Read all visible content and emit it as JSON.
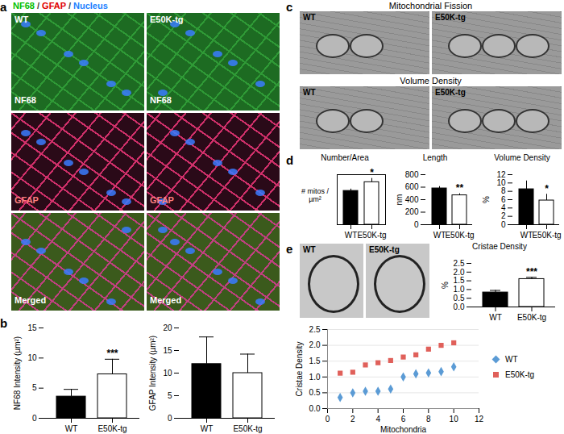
{
  "figure": {
    "letters": [
      "a",
      "b",
      "c",
      "d",
      "e"
    ],
    "panel_a": {
      "header": [
        {
          "text": "NF68",
          "color": "#00c000"
        },
        {
          "text": "GFAP",
          "color": "#e00000"
        },
        {
          "text": "Nucleus",
          "color": "#2080ff"
        }
      ],
      "separator": " / ",
      "columns": [
        "WT",
        "E50K-tg"
      ],
      "rows": [
        "NF68",
        "GFAP",
        "Merged"
      ]
    },
    "panel_c": {
      "sections": [
        {
          "title": "Mitochondrial Fission",
          "columns": [
            "WT",
            "E50K-tg"
          ]
        },
        {
          "title": "Volume Density",
          "columns": [
            "WT",
            "E50K-tg"
          ]
        }
      ]
    },
    "panel_e": {
      "columns": [
        "WT",
        "E50K-tg"
      ]
    }
  },
  "chart_data": [
    {
      "type": "bar",
      "ylabel": "NF68 Intensity (µm²)",
      "categories": [
        "WT",
        "E50K-tg"
      ],
      "values": [
        3.6,
        7.3
      ],
      "errors": [
        1.2,
        2.5
      ],
      "colors": [
        "#000000",
        "#ffffff"
      ],
      "ylim": [
        0,
        15
      ],
      "yticks": [
        0,
        5,
        10,
        15
      ],
      "annotations": [
        {
          "category": "E50K-tg",
          "text": "***"
        }
      ]
    },
    {
      "type": "bar",
      "ylabel": "GFAP Intensity (µm²)",
      "categories": [
        "WT",
        "E50K-tg"
      ],
      "values": [
        12,
        10
      ],
      "errors": [
        6,
        4.2
      ],
      "colors": [
        "#000000",
        "#ffffff"
      ],
      "ylim": [
        0,
        20
      ],
      "yticks": [
        0,
        5,
        10,
        15,
        20
      ]
    },
    {
      "type": "bar",
      "title": "Number/Area",
      "ylabel": "# mitos / µm²",
      "categories": [
        "WT",
        "E50K-tg"
      ],
      "values": [
        0.54,
        0.68
      ],
      "errors": [
        0.03,
        0.06
      ],
      "colors": [
        "#000000",
        "#ffffff"
      ],
      "ylim": [
        0,
        0.8
      ],
      "yticks": [],
      "tick_labels": "x",
      "annotations": [
        {
          "category": "E50K-tg",
          "text": "*"
        }
      ]
    },
    {
      "type": "bar",
      "title": "Length",
      "ylabel": "nm",
      "categories": [
        "WT",
        "E50K-tg"
      ],
      "values": [
        580,
        470
      ],
      "errors": [
        30,
        25
      ],
      "colors": [
        "#000000",
        "#ffffff"
      ],
      "ylim": [
        0,
        800
      ],
      "yticks": [
        0,
        200,
        400,
        600,
        800
      ],
      "annotations": [
        {
          "category": "E50K-tg",
          "text": "**"
        }
      ]
    },
    {
      "type": "bar",
      "title": "Volume Density",
      "ylabel": "%",
      "categories": [
        "WT",
        "E50K-tg"
      ],
      "values": [
        8.5,
        5.8
      ],
      "errors": [
        2,
        1.5
      ],
      "colors": [
        "#000000",
        "#ffffff"
      ],
      "ylim": [
        0,
        12
      ],
      "yticks": [
        0,
        2,
        4,
        6,
        8,
        10,
        12
      ],
      "annotations": [
        {
          "category": "E50K-tg",
          "text": "*"
        }
      ]
    },
    {
      "type": "bar",
      "title": "Cristae Density",
      "ylabel": "%",
      "categories": [
        "WT",
        "E50K-tg"
      ],
      "values": [
        0.83,
        1.6
      ],
      "errors": [
        0.12,
        0.1
      ],
      "colors": [
        "#000000",
        "#ffffff"
      ],
      "ylim": [
        0,
        2.5
      ],
      "yticks": [
        0,
        0.5,
        1,
        1.5,
        2,
        2.5
      ],
      "annotations": [
        {
          "category": "E50K-tg",
          "text": "***"
        }
      ]
    },
    {
      "type": "scatter",
      "xlabel": "Mitochondria",
      "ylabel": "Cristae Density",
      "x": [
        1,
        2,
        3,
        4,
        5,
        6,
        7,
        8,
        9,
        10
      ],
      "series": [
        {
          "name": "WT",
          "color": "#5b9bd5",
          "marker": "diamond",
          "values": [
            0.35,
            0.5,
            0.55,
            0.55,
            0.62,
            1.0,
            1.1,
            1.13,
            1.17,
            1.32
          ]
        },
        {
          "name": "E50K-tg",
          "color": "#e0605a",
          "marker": "square",
          "values": [
            1.12,
            1.15,
            1.38,
            1.45,
            1.52,
            1.63,
            1.7,
            1.88,
            2.0,
            2.08
          ]
        }
      ],
      "xlim": [
        0,
        12
      ],
      "xticks": [
        0,
        2,
        4,
        6,
        8,
        10,
        12
      ],
      "ylim": [
        0,
        2.5
      ],
      "yticks": [
        0,
        0.5,
        1,
        1.5,
        2,
        2.5
      ],
      "grid": true,
      "legend": "right"
    }
  ]
}
